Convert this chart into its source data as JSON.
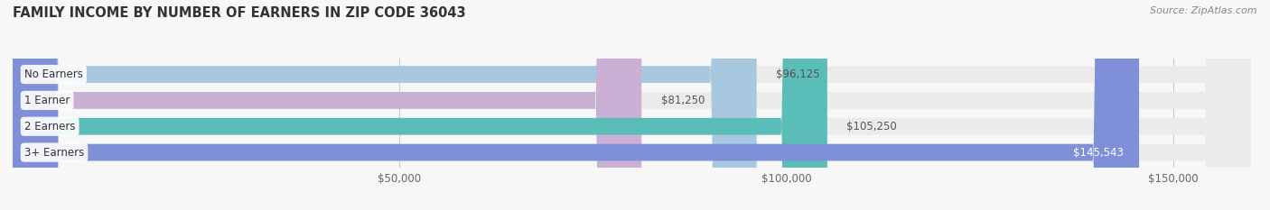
{
  "title": "FAMILY INCOME BY NUMBER OF EARNERS IN ZIP CODE 36043",
  "source": "Source: ZipAtlas.com",
  "categories": [
    "No Earners",
    "1 Earner",
    "2 Earners",
    "3+ Earners"
  ],
  "values": [
    96125,
    81250,
    105250,
    145543
  ],
  "bar_colors": [
    "#a8c8e0",
    "#c9b0d4",
    "#5bbdb8",
    "#8090d8"
  ],
  "bar_bg_color": "#ebebeb",
  "value_labels": [
    "$96,125",
    "$81,250",
    "$105,250",
    "$145,543"
  ],
  "label_inside": [
    false,
    false,
    false,
    true
  ],
  "xlim": [
    0,
    160000
  ],
  "xticks": [
    50000,
    100000,
    150000
  ],
  "xtick_labels": [
    "$50,000",
    "$100,000",
    "$150,000"
  ],
  "title_fontsize": 10.5,
  "label_fontsize": 8.5,
  "value_fontsize": 8.5,
  "source_fontsize": 8,
  "background_color": "#f7f7f7"
}
